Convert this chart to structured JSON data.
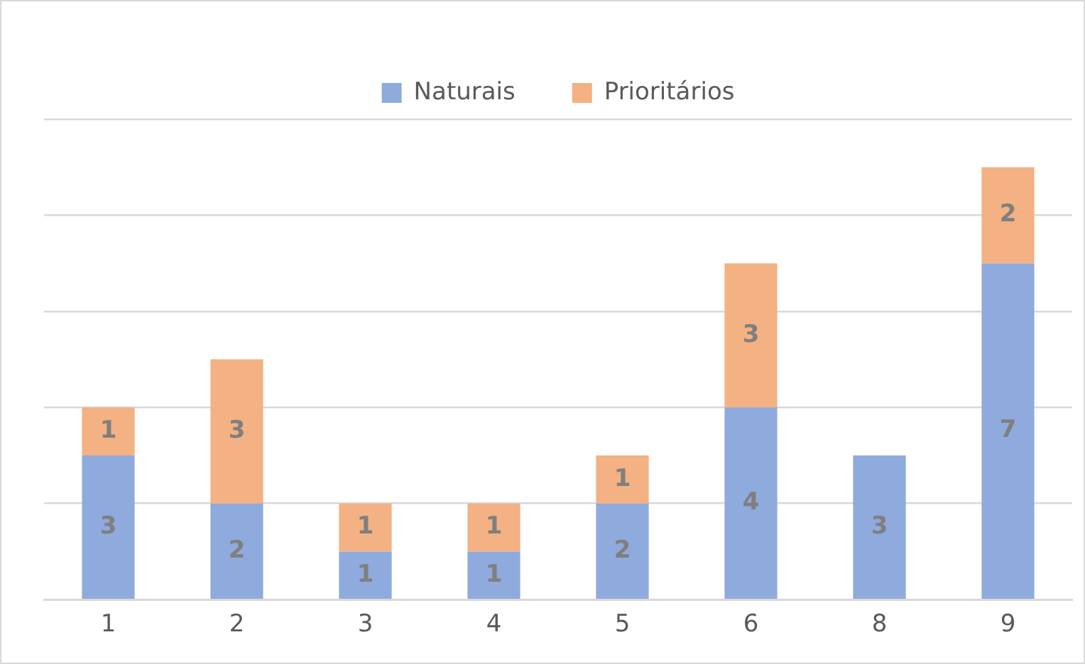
{
  "chart_data": {
    "type": "bar",
    "stacked": true,
    "categories": [
      "1",
      "2",
      "3",
      "4",
      "5",
      "6",
      "8",
      "9"
    ],
    "series": [
      {
        "name": "Naturais",
        "color": "#8faadc",
        "values": [
          3,
          2,
          1,
          1,
          2,
          4,
          3,
          7
        ]
      },
      {
        "name": "Prioritários",
        "color": "#f4b183",
        "values": [
          1,
          3,
          1,
          1,
          1,
          3,
          null,
          2
        ]
      }
    ],
    "ylim": [
      0,
      10
    ],
    "yticks": [
      {
        "value": 0,
        "label": null
      },
      {
        "value": 2,
        "label": null
      },
      {
        "value": 4,
        "label": null
      },
      {
        "value": 6,
        "label": null
      },
      {
        "value": 8,
        "label": null
      },
      {
        "value": 10,
        "label": null
      }
    ],
    "tick_labels": "x",
    "grid": "y",
    "legend": "top",
    "data_labels": true
  }
}
